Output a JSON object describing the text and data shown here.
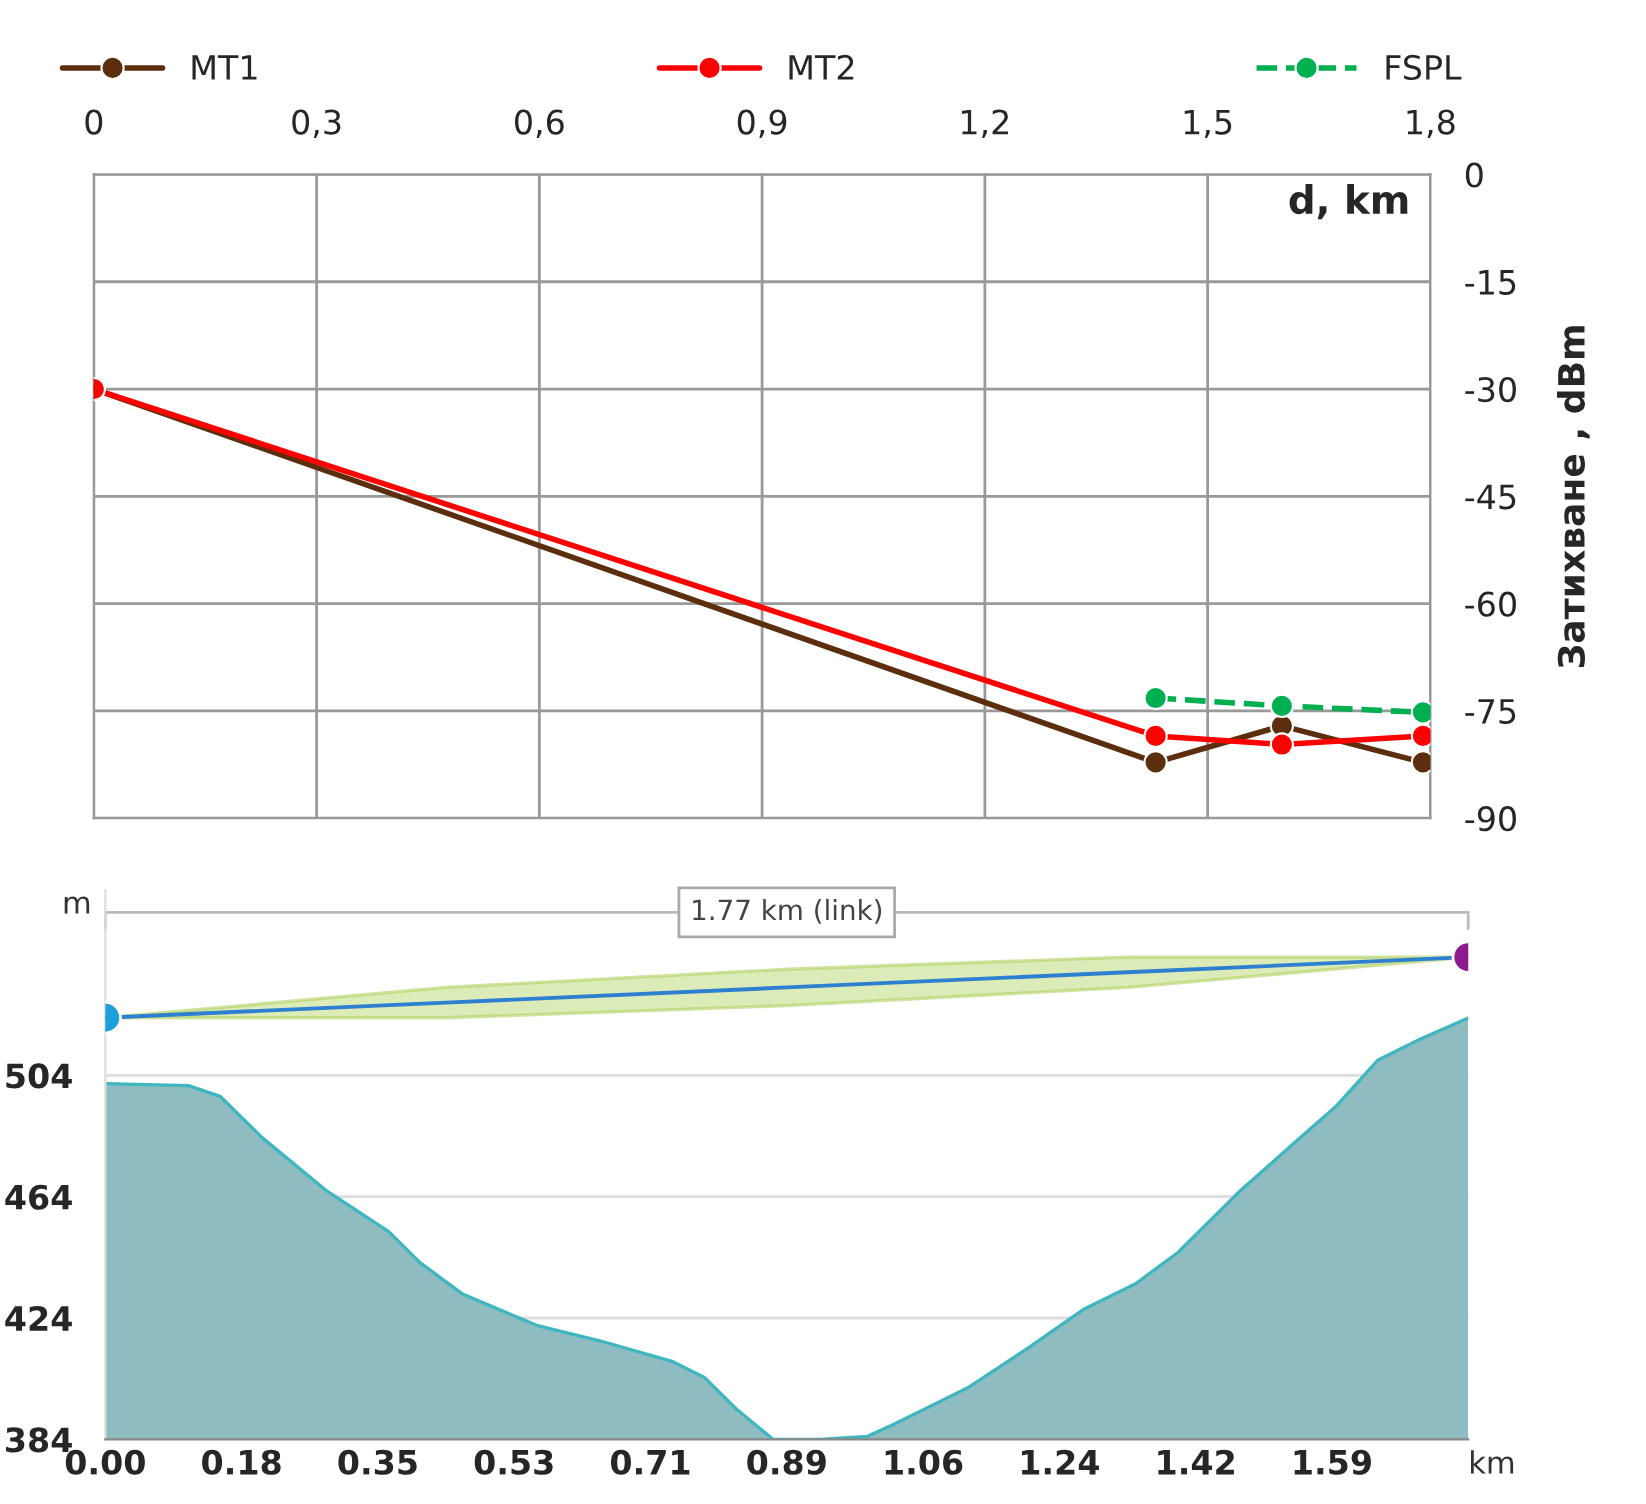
{
  "chart_data": [
    {
      "type": "line",
      "ylabel": "Затихване , dBm",
      "xlabel": "d, km",
      "xlim": [
        0,
        1.8
      ],
      "xticks": [
        0,
        {
          "value": 0.3,
          "label": "0,3"
        },
        {
          "value": 0.6,
          "label": "0,6"
        },
        {
          "value": 0.9,
          "label": "0,9"
        },
        {
          "value": 1.2,
          "label": "1,2"
        },
        {
          "value": 1.5,
          "label": "1,5"
        },
        {
          "value": 1.8,
          "label": "1,8"
        }
      ],
      "ylim": [
        -90,
        0
      ],
      "yticks": [
        0,
        -15,
        -30,
        -45,
        -60,
        -75,
        -90
      ],
      "grid": true,
      "legend": "top",
      "marker": "circle",
      "series": [
        {
          "name": "MT1",
          "color": "#5c2e0e",
          "x": [
            0,
            1.43,
            1.6,
            1.79
          ],
          "values": [
            -30,
            -82.2,
            -77.1,
            -82.2
          ]
        },
        {
          "name": "MT2",
          "color": "#ff0000",
          "x": [
            0,
            1.43,
            1.6,
            1.79
          ],
          "values": [
            -30,
            -78.5,
            -79.7,
            -78.5
          ]
        },
        {
          "name": "FSPL",
          "color": "#00b050",
          "line_style": "dashed",
          "x": [
            1.43,
            1.6,
            1.79
          ],
          "values": [
            -73.2,
            -74.3,
            -75.2
          ]
        }
      ]
    },
    {
      "type": "area",
      "ylabel": "m",
      "xlabel": "km",
      "annotations": [
        "1.77 km (link)"
      ],
      "xlim": [
        0,
        1.77
      ],
      "xticks": [
        {
          "value": 0,
          "label": "0.00"
        },
        {
          "value": 0.177,
          "label": "0.18"
        },
        {
          "value": 0.354,
          "label": "0.35"
        },
        {
          "value": 0.531,
          "label": "0.53"
        },
        {
          "value": 0.708,
          "label": "0.71"
        },
        {
          "value": 0.885,
          "label": "0.89"
        },
        {
          "value": 1.062,
          "label": "1.06"
        },
        {
          "value": 1.239,
          "label": "1.24"
        },
        {
          "value": 1.416,
          "label": "1.42"
        },
        {
          "value": 1.593,
          "label": "1.59"
        }
      ],
      "ylim": [
        384,
        565
      ],
      "yticks": [
        384,
        424,
        464,
        504
      ],
      "grid": "y",
      "series": [
        {
          "color": "#8fbcc0",
          "x": [
            0,
            0.108,
            0.149,
            0.204,
            0.286,
            0.368,
            0.409,
            0.464,
            0.56,
            0.642,
            0.737,
            0.778,
            0.819,
            0.867,
            0.928,
            0.99,
            1.024,
            1.065,
            1.12,
            1.202,
            1.27,
            1.338,
            1.393,
            1.475,
            1.544,
            1.598,
            1.653,
            1.708,
            1.77
          ],
          "values": [
            501.3,
            500.6,
            497.1,
            483.4,
            466.2,
            452.5,
            442.2,
            431.9,
            421.6,
            416.5,
            409.6,
            404.4,
            394.1,
            384,
            384,
            385,
            389,
            394.1,
            401,
            414.7,
            426.8,
            435.3,
            445.6,
            466.2,
            481.7,
            493.7,
            509.1,
            516,
            522.9
          ]
        },
        {
          "type": "line",
          "color": "#2f7fd0",
          "colors": [
            "#1ca0dc",
            null,
            null,
            null,
            "#8e1a8e"
          ],
          "x": [
            0,
            0.4425,
            0.885,
            1.3275,
            1.77
          ],
          "values": [
            523,
            528,
            533,
            538,
            543
          ],
          "lower": [
            523,
            523,
            527,
            533,
            543
          ],
          "upper": [
            523,
            533,
            539,
            543,
            543
          ]
        }
      ]
    }
  ]
}
